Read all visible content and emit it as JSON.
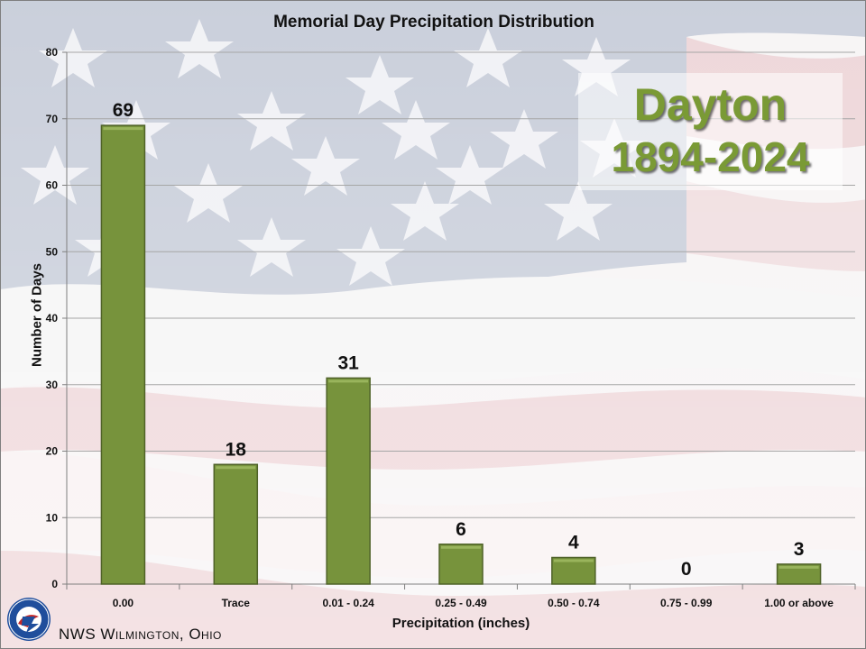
{
  "header": {
    "title": "Memorial Day Precipitation Distribution"
  },
  "badge": {
    "line1": "Dayton",
    "line2": "1894-2024"
  },
  "footer": {
    "text": "NWS Wilmington, Ohio"
  },
  "colors": {
    "bar": "#77933c",
    "bar_edge": "#4f6228",
    "grid": "#a6a6a6",
    "badge_text": "#7a9a35"
  },
  "chart_data": {
    "type": "bar",
    "title": "Memorial Day Precipitation Distribution",
    "xlabel": "Precipitation (inches)",
    "ylabel": "Number of Days",
    "categories": [
      "0.00",
      "Trace",
      "0.01 - 0.24",
      "0.25 - 0.49",
      "0.50 - 0.74",
      "0.75 - 0.99",
      "1.00 or above"
    ],
    "values": [
      69,
      18,
      31,
      6,
      4,
      0,
      3
    ],
    "ylim": [
      0,
      80
    ],
    "yticks": [
      0,
      10,
      20,
      30,
      40,
      50,
      60,
      70,
      80
    ],
    "grid": true,
    "data_labels": true
  }
}
